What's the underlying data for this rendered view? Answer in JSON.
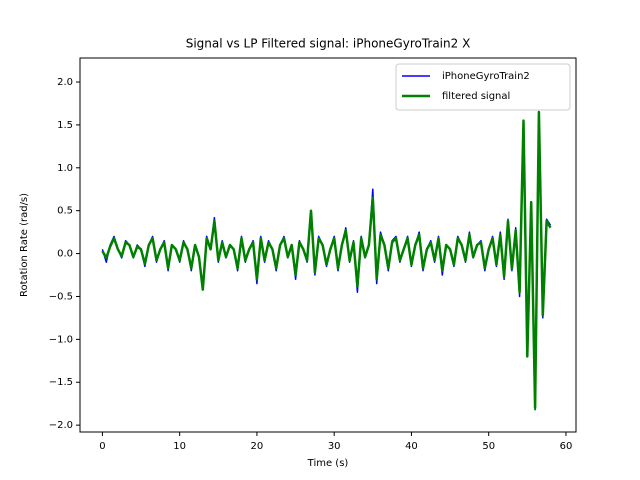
{
  "chart_data": {
    "type": "line",
    "title": "Signal vs LP Filtered signal: iPhoneGyroTrain2 X",
    "x_label": "Time (s)",
    "y_label": "Rotation Rate (rad/s)",
    "x": [
      0,
      0.5,
      1,
      1.5,
      2,
      2.5,
      3,
      3.5,
      4,
      4.5,
      5,
      5.5,
      6,
      6.5,
      7,
      7.5,
      8,
      8.5,
      9,
      9.5,
      10,
      10.5,
      11,
      11.5,
      12,
      12.5,
      13,
      13.5,
      14,
      14.5,
      15,
      15.5,
      16,
      16.5,
      17,
      17.5,
      18,
      18.5,
      19,
      19.5,
      20,
      20.5,
      21,
      21.5,
      22,
      22.5,
      23,
      23.5,
      24,
      24.5,
      25,
      25.5,
      26,
      26.5,
      27,
      27.5,
      28,
      28.5,
      29,
      29.5,
      30,
      30.5,
      31,
      31.5,
      32,
      32.5,
      33,
      33.5,
      34,
      34.5,
      35,
      35.5,
      36,
      36.5,
      37,
      37.5,
      38,
      38.5,
      39,
      39.5,
      40,
      40.5,
      41,
      41.5,
      42,
      42.5,
      43,
      43.5,
      44,
      44.5,
      45,
      45.5,
      46,
      46.5,
      47,
      47.5,
      48,
      48.5,
      49,
      49.5,
      50,
      50.5,
      51,
      51.5,
      52,
      52.5,
      53,
      53.5,
      54,
      54.5,
      55,
      55.5,
      56,
      56.5,
      57,
      57.5,
      58
    ],
    "series": [
      {
        "name": "iPhoneGyroTrain2",
        "color": "#0000ff",
        "width": 1.5,
        "values": [
          0.05,
          -0.1,
          0.1,
          0.2,
          0.05,
          -0.05,
          0.15,
          0.1,
          -0.05,
          0.1,
          0.05,
          -0.15,
          0.1,
          0.2,
          -0.1,
          0.05,
          0.15,
          -0.2,
          0.1,
          0.05,
          -0.1,
          0.15,
          0.05,
          -0.2,
          0.1,
          -0.05,
          -0.4,
          0.2,
          0.05,
          0.42,
          -0.1,
          0.15,
          -0.05,
          0.1,
          0.05,
          -0.2,
          0.2,
          -0.1,
          0.05,
          0.15,
          -0.35,
          0.2,
          -0.1,
          0.15,
          0.05,
          -0.2,
          0.1,
          0.2,
          -0.05,
          0.1,
          -0.3,
          0.15,
          0.05,
          -0.1,
          0.5,
          -0.25,
          0.2,
          0.1,
          -0.15,
          0.05,
          0.2,
          -0.2,
          0.1,
          0.3,
          -0.1,
          0.15,
          -0.45,
          0.2,
          -0.05,
          0.1,
          0.75,
          -0.35,
          0.25,
          0.1,
          -0.2,
          0.15,
          0.2,
          -0.1,
          0.05,
          0.2,
          -0.15,
          0.1,
          0.25,
          -0.2,
          0.05,
          0.15,
          -0.1,
          0.2,
          -0.25,
          0.1,
          0.05,
          -0.15,
          0.2,
          0.1,
          -0.1,
          0.25,
          -0.05,
          0.1,
          0.15,
          -0.2,
          0.05,
          0.2,
          -0.15,
          0.25,
          -0.3,
          0.4,
          -0.2,
          0.3,
          -0.5,
          1.55,
          -1.2,
          0.6,
          -1.82,
          1.65,
          -0.75,
          0.4,
          0.33
        ]
      },
      {
        "name": "filtered signal",
        "color": "#008000",
        "width": 2.5,
        "values": [
          0.03,
          -0.05,
          0.08,
          0.18,
          0.05,
          -0.03,
          0.13,
          0.1,
          -0.04,
          0.08,
          0.05,
          -0.12,
          0.1,
          0.18,
          -0.08,
          0.05,
          0.13,
          -0.17,
          0.1,
          0.05,
          -0.08,
          0.13,
          0.05,
          -0.17,
          0.1,
          -0.04,
          -0.42,
          0.18,
          0.05,
          0.38,
          -0.08,
          0.13,
          -0.04,
          0.1,
          0.05,
          -0.17,
          0.18,
          -0.08,
          0.05,
          0.13,
          -0.3,
          0.18,
          -0.08,
          0.13,
          0.05,
          -0.17,
          0.1,
          0.18,
          -0.04,
          0.1,
          -0.25,
          0.13,
          0.05,
          -0.08,
          0.5,
          -0.22,
          0.18,
          0.1,
          -0.13,
          0.05,
          0.18,
          -0.17,
          0.1,
          0.27,
          -0.08,
          0.13,
          -0.38,
          0.18,
          -0.04,
          0.1,
          0.65,
          -0.3,
          0.22,
          0.1,
          -0.17,
          0.13,
          0.18,
          -0.08,
          0.05,
          0.18,
          -0.13,
          0.1,
          0.22,
          -0.17,
          0.05,
          0.13,
          -0.08,
          0.18,
          -0.2,
          0.1,
          0.05,
          -0.13,
          0.18,
          0.1,
          -0.08,
          0.22,
          -0.04,
          0.1,
          0.13,
          -0.17,
          0.05,
          0.18,
          -0.13,
          0.22,
          -0.27,
          0.38,
          -0.18,
          0.27,
          -0.45,
          1.55,
          -1.2,
          0.6,
          -1.8,
          1.65,
          -0.72,
          0.38,
          0.3
        ]
      }
    ],
    "xlim": [
      -2.9,
      61.3
    ],
    "xticks": [
      0,
      10,
      20,
      30,
      40,
      50,
      60
    ],
    "ylim": [
      -2.08,
      2.28
    ],
    "yticks": [
      {
        "value": -2,
        "label": "−2.0"
      },
      {
        "value": -1.5,
        "label": "−1.5"
      },
      {
        "value": -1,
        "label": "−1.0"
      },
      {
        "value": -0.5,
        "label": "−0.5"
      },
      {
        "value": 0,
        "label": "0.0"
      },
      {
        "value": 0.5,
        "label": "0.5"
      },
      {
        "value": 1,
        "label": "1.0"
      },
      {
        "value": 1.5,
        "label": "1.5"
      },
      {
        "value": 2,
        "label": "2.0"
      }
    ],
    "legend": "upper right"
  }
}
